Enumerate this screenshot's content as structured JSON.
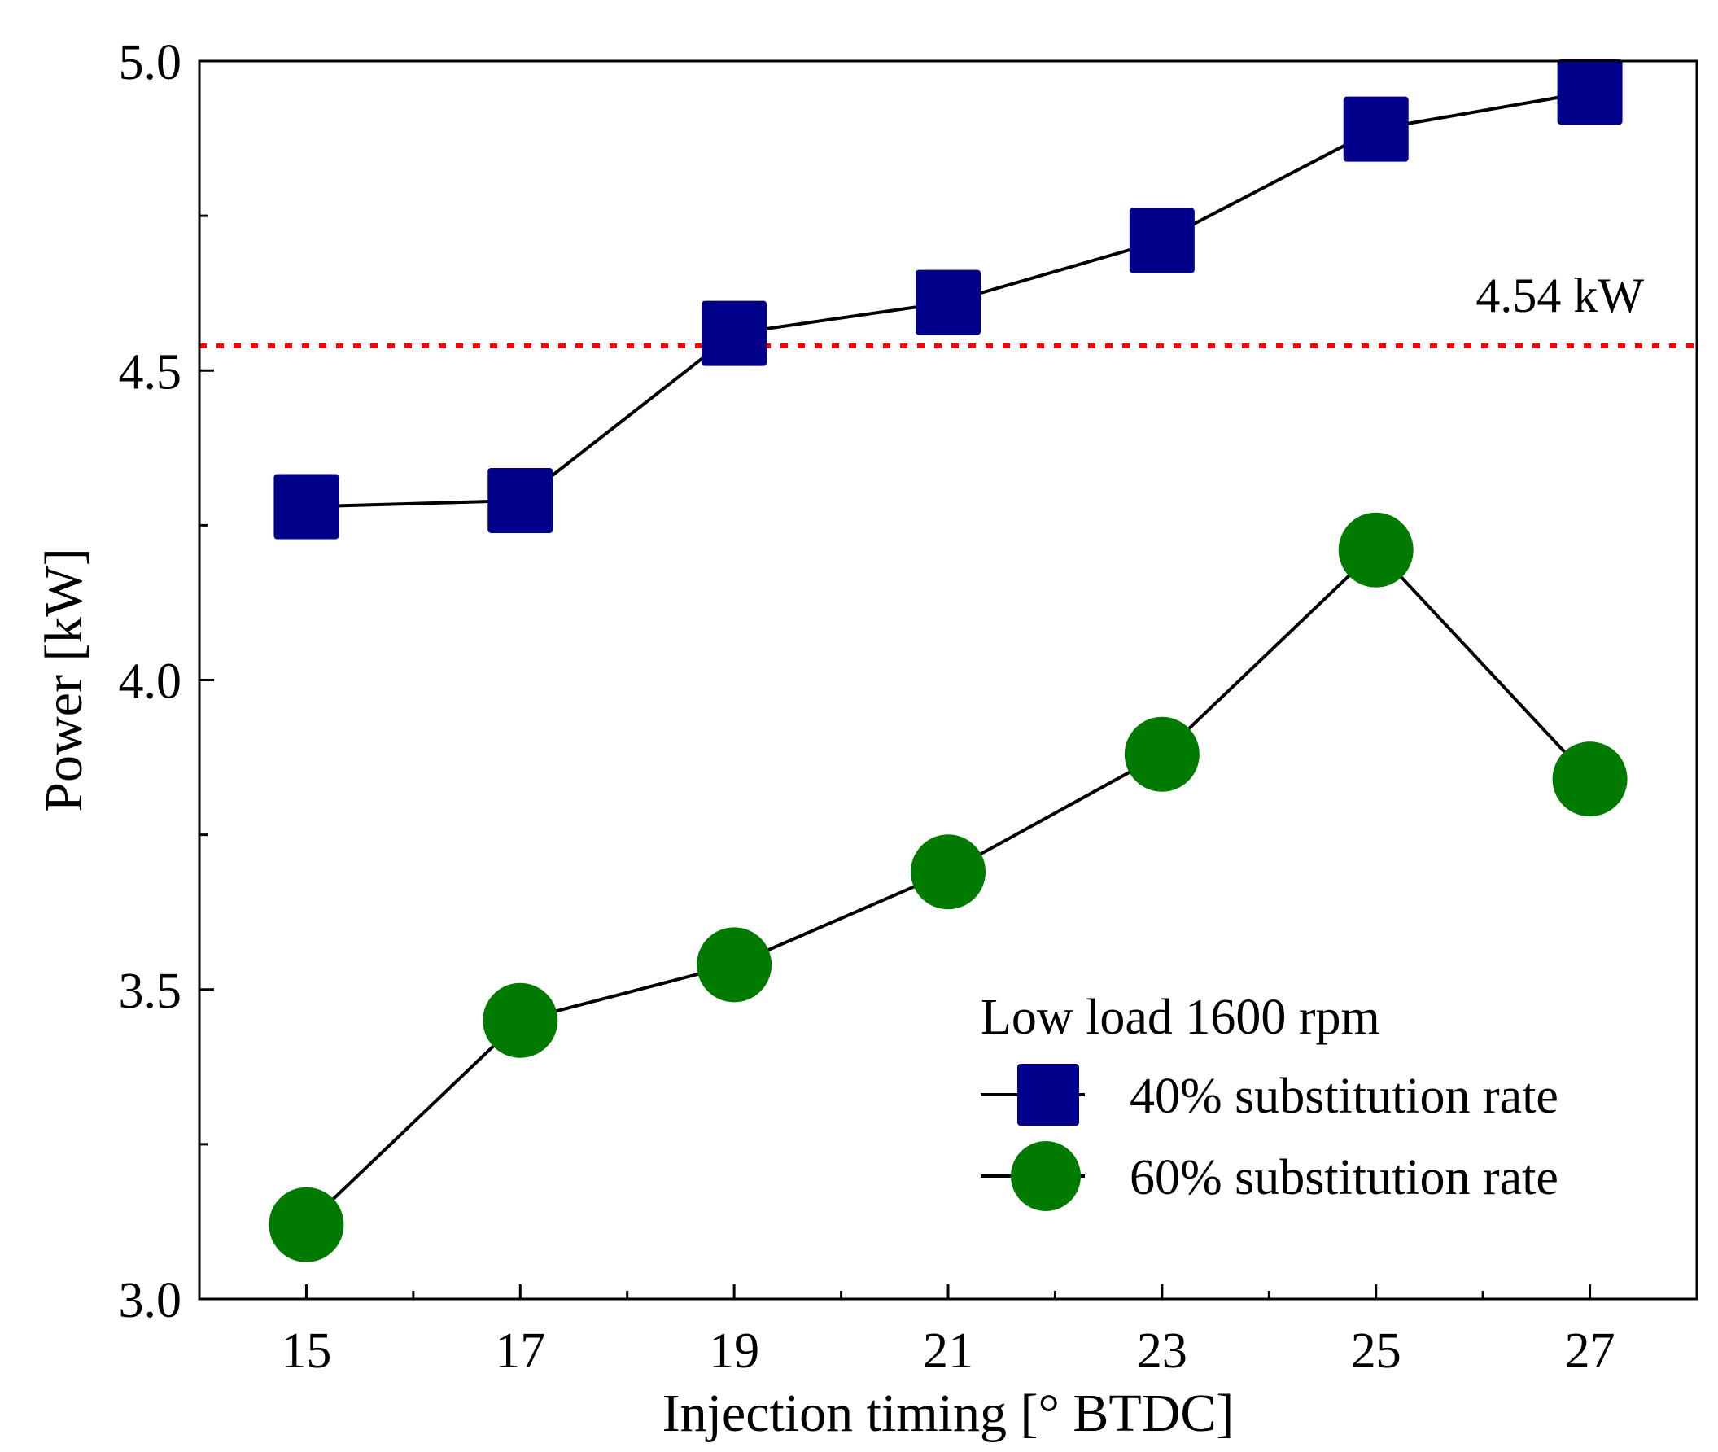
{
  "chart_data": {
    "type": "line",
    "title": "",
    "xlabel": "Injection timing [° BTDC]",
    "ylabel": "Power [kW]",
    "x": [
      15,
      17,
      19,
      21,
      23,
      25,
      27
    ],
    "xlim": [
      14,
      28
    ],
    "ylim": [
      3.0,
      5.0
    ],
    "xticks": [
      "15",
      "17",
      "19",
      "21",
      "23",
      "25",
      "27"
    ],
    "yticks": [
      "3.0",
      "3.5",
      "4.0",
      "4.5",
      "5.0"
    ],
    "grid": false,
    "legend_position": "bottom-right",
    "legend_title": "Low load 1600 rpm",
    "series": [
      {
        "name": "40% substitution rate",
        "marker": "square",
        "color": "#00008b",
        "values": [
          4.28,
          4.29,
          4.56,
          4.61,
          4.71,
          4.89,
          4.95
        ]
      },
      {
        "name": "60% substitution rate",
        "marker": "circle",
        "color": "#007b00",
        "values": [
          3.12,
          3.45,
          3.54,
          3.69,
          3.88,
          4.21,
          3.84
        ]
      }
    ],
    "reference_line": {
      "value": 4.54,
      "label": "4.54 kW",
      "color": "#ff0000",
      "style": "dotted"
    }
  }
}
